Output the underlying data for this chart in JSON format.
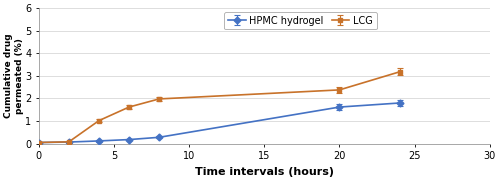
{
  "hpmc_x": [
    0,
    2,
    4,
    6,
    8,
    20,
    24
  ],
  "hpmc_y": [
    0.05,
    0.07,
    0.12,
    0.18,
    0.28,
    1.62,
    1.8
  ],
  "hpmc_err": [
    0.02,
    0.02,
    0.03,
    0.04,
    0.05,
    0.12,
    0.13
  ],
  "lcg_x": [
    0,
    2,
    4,
    6,
    8,
    20,
    24
  ],
  "lcg_y": [
    0.05,
    0.08,
    1.02,
    1.62,
    1.98,
    2.38,
    3.18
  ],
  "lcg_err": [
    0.02,
    0.03,
    0.06,
    0.09,
    0.08,
    0.13,
    0.16
  ],
  "hpmc_color": "#4472c4",
  "lcg_color": "#c8722a",
  "xlabel": "Time intervals (hours)",
  "ylabel": "Cumulative drug\npermeated (%)",
  "xlim": [
    0,
    30
  ],
  "ylim": [
    0,
    6
  ],
  "xticks": [
    0,
    5,
    10,
    15,
    20,
    25,
    30
  ],
  "yticks": [
    0,
    1,
    2,
    3,
    4,
    5,
    6
  ],
  "legend_labels": [
    "HPMC hydrogel",
    "LCG"
  ],
  "hpmc_marker": "D",
  "lcg_marker": "s",
  "grid_color": "#d8d8d8",
  "bg_color": "#ffffff"
}
